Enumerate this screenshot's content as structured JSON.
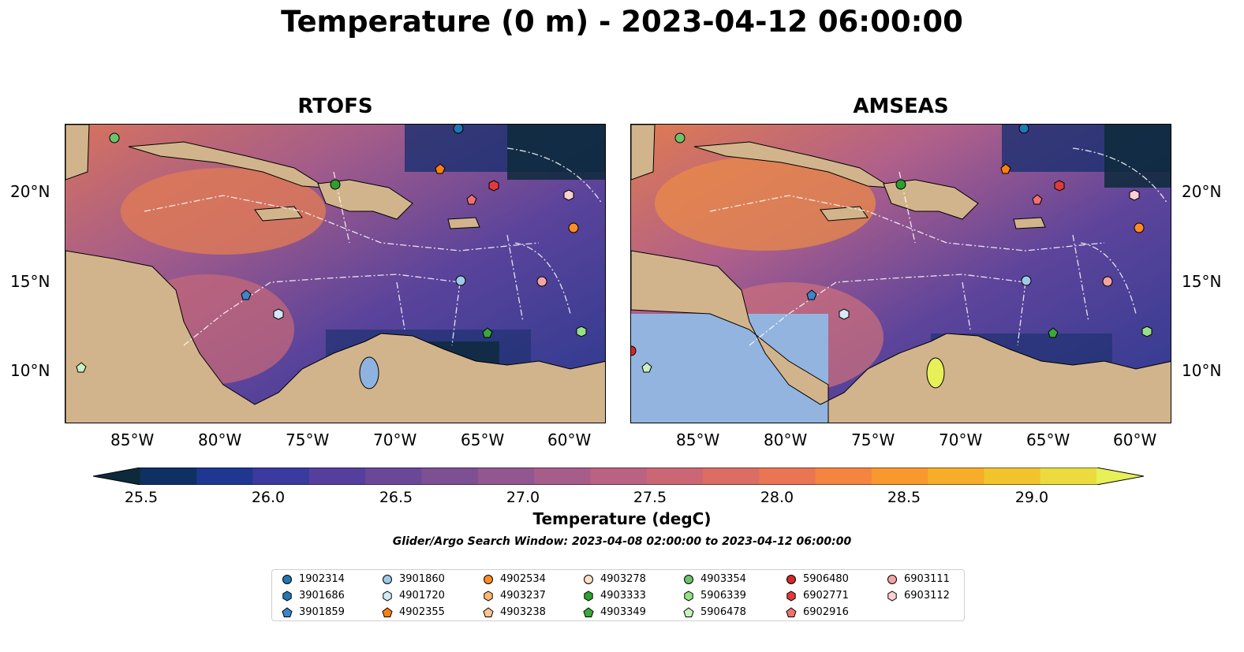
{
  "title": "Temperature (0 m) - 2023-04-12 06:00:00",
  "panels": [
    {
      "title": "RTOFS"
    },
    {
      "title": "AMSEAS"
    }
  ],
  "lat_labels": [
    "20°N",
    "15°N",
    "10°N"
  ],
  "lon_labels": [
    "85°W",
    "80°W",
    "75°W",
    "70°W",
    "65°W",
    "60°W"
  ],
  "map_extent": {
    "lon": [
      -89,
      -58
    ],
    "lat": [
      7,
      24
    ]
  },
  "colorbar": {
    "label": "Temperature (degC)",
    "ticks": [
      "25.5",
      "26.0",
      "26.5",
      "27.0",
      "27.5",
      "28.0",
      "28.5",
      "29.0"
    ],
    "range": [
      25.5,
      29.25
    ],
    "extend": "both",
    "colors": [
      "#0d2a3b",
      "#0f3063",
      "#1f3790",
      "#3b3a9e",
      "#54409c",
      "#6a4897",
      "#7d4f93",
      "#925790",
      "#a65d8a",
      "#b96281",
      "#cb6775",
      "#db6d64",
      "#ea7552",
      "#f4843f",
      "#f8982f",
      "#f6ad2a",
      "#f1c42e",
      "#ebdb3f",
      "#e6f058"
    ]
  },
  "land_color": "#d2b48c",
  "search_window": "Glider/Argo Search Window: 2023-04-08 02:00:00 to 2023-04-12 06:00:00",
  "legend": [
    {
      "label": "1902314",
      "marker": "circle",
      "color": "#1f77b4"
    },
    {
      "label": "3901686",
      "marker": "hexagon",
      "color": "#1f77b4"
    },
    {
      "label": "3901859",
      "marker": "pentagon",
      "color": "#3b86c8"
    },
    {
      "label": "3901860",
      "marker": "circle",
      "color": "#9ec9e8"
    },
    {
      "label": "4901720",
      "marker": "hexagon",
      "color": "#d2e9f7"
    },
    {
      "label": "4902355",
      "marker": "pentagon",
      "color": "#ff7f0e"
    },
    {
      "label": "4902534",
      "marker": "circle",
      "color": "#ff8c24"
    },
    {
      "label": "4903237",
      "marker": "hexagon",
      "color": "#ffb66e"
    },
    {
      "label": "4903238",
      "marker": "pentagon",
      "color": "#ffc58f"
    },
    {
      "label": "4903278",
      "marker": "circle",
      "color": "#fde0c5"
    },
    {
      "label": "4903333",
      "marker": "hexagon",
      "color": "#2ca02c"
    },
    {
      "label": "4903349",
      "marker": "pentagon",
      "color": "#3aa83a"
    },
    {
      "label": "4903354",
      "marker": "circle",
      "color": "#6cc36c"
    },
    {
      "label": "5906339",
      "marker": "hexagon",
      "color": "#98df8a"
    },
    {
      "label": "5906478",
      "marker": "pentagon",
      "color": "#c9f2c0"
    },
    {
      "label": "5906480",
      "marker": "circle",
      "color": "#d62728"
    },
    {
      "label": "6902771",
      "marker": "hexagon",
      "color": "#e03a3a"
    },
    {
      "label": "6902916",
      "marker": "pentagon",
      "color": "#f07070"
    },
    {
      "label": "6903111",
      "marker": "circle",
      "color": "#f4a3a3"
    },
    {
      "label": "6903112",
      "marker": "hexagon",
      "color": "#fbd0d0"
    }
  ]
}
